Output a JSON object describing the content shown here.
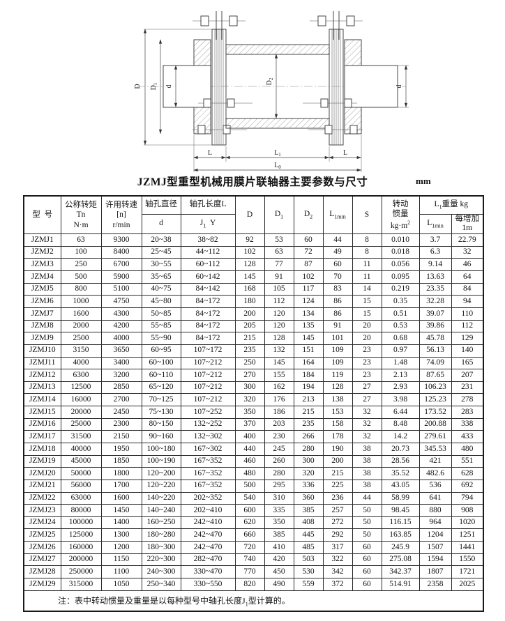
{
  "title": "JZMJ型重型机械用膜片联轴器主要参数与尺寸",
  "unit": "mm",
  "drawing": {
    "labels": {
      "D": "D",
      "D1": [
        "D",
        "1"
      ],
      "d_left": "d",
      "D2": [
        "D",
        "2"
      ],
      "d_right": "d",
      "L_left": "L",
      "L1": [
        "L",
        "1"
      ],
      "L_right": "L",
      "L0": [
        "L",
        "0"
      ]
    }
  },
  "table": {
    "header": {
      "model": "型  号",
      "torque": [
        "公称转矩",
        "Tn",
        "N·m"
      ],
      "speed": [
        "许用转速",
        "[n]",
        "r/min"
      ],
      "bore_dia": "轴孔直径",
      "bore_d": "d",
      "bore_len": "轴孔长度L",
      "j_base": "J",
      "j_sub": "1",
      "y": "Y",
      "D": "D",
      "D1_base": "D",
      "D1_sub": "1",
      "D2_base": "D",
      "D2_sub": "2",
      "L1min_base": "L",
      "L1min_sub": "1min",
      "S": "S",
      "inertia_l1": "转动",
      "inertia_l2": "惯量",
      "inertia_unit_base": "kg·m",
      "inertia_unit_sup": "2",
      "weight_base": "L",
      "weight_sub": "1",
      "weight_rest": "重量 kg",
      "w_l1min_base": "L",
      "w_l1min_sub": "1min",
      "per_m": "每增加1m"
    },
    "col_keys": [
      "model",
      "torque",
      "speed",
      "d",
      "jy",
      "D",
      "D1",
      "D2",
      "L1min",
      "S",
      "inertia",
      "w-l1min",
      "w-per-m"
    ],
    "rows": [
      [
        "JZMJ1",
        "63",
        "9300",
        "20~38",
        "38~82",
        "92",
        "53",
        "60",
        "44",
        "8",
        "0.010",
        "3.7",
        "22.79"
      ],
      [
        "JZMJ2",
        "100",
        "8400",
        "25~45",
        "44~112",
        "102",
        "63",
        "72",
        "49",
        "8",
        "0.018",
        "6.3",
        "32"
      ],
      [
        "JZMJ3",
        "250",
        "6700",
        "30~55",
        "60~112",
        "128",
        "77",
        "87",
        "60",
        "11",
        "0.056",
        "9.14",
        "46"
      ],
      [
        "JZMJ4",
        "500",
        "5900",
        "35~65",
        "60~142",
        "145",
        "91",
        "102",
        "70",
        "11",
        "0.095",
        "13.63",
        "64"
      ],
      [
        "JZMJ5",
        "800",
        "5100",
        "40~75",
        "84~142",
        "168",
        "105",
        "117",
        "83",
        "14",
        "0.219",
        "23.35",
        "84"
      ],
      [
        "JZMJ6",
        "1000",
        "4750",
        "45~80",
        "84~172",
        "180",
        "112",
        "124",
        "86",
        "15",
        "0.35",
        "32.28",
        "94"
      ],
      [
        "JZMJ7",
        "1600",
        "4300",
        "50~85",
        "84~172",
        "200",
        "120",
        "134",
        "86",
        "15",
        "0.51",
        "39.07",
        "110"
      ],
      [
        "JZMJ8",
        "2000",
        "4200",
        "55~85",
        "84~172",
        "205",
        "120",
        "135",
        "91",
        "20",
        "0.53",
        "39.86",
        "112"
      ],
      [
        "JZMJ9",
        "2500",
        "4000",
        "55~90",
        "84~172",
        "215",
        "128",
        "145",
        "101",
        "20",
        "0.68",
        "45.78",
        "129"
      ],
      [
        "JZMJ10",
        "3150",
        "3650",
        "60~95",
        "107~172",
        "235",
        "132",
        "151",
        "109",
        "23",
        "0.97",
        "56.13",
        "140"
      ],
      [
        "JZMJ11",
        "4000",
        "3400",
        "60~100",
        "107~212",
        "250",
        "145",
        "164",
        "109",
        "23",
        "1.48",
        "74.09",
        "165"
      ],
      [
        "JZMJ12",
        "6300",
        "3200",
        "60~110",
        "107~212",
        "270",
        "155",
        "184",
        "119",
        "23",
        "2.13",
        "87.65",
        "207"
      ],
      [
        "JZMJ13",
        "12500",
        "2850",
        "65~120",
        "107~212",
        "300",
        "162",
        "194",
        "128",
        "27",
        "2.93",
        "106.23",
        "231"
      ],
      [
        "JZMJ14",
        "16000",
        "2700",
        "70~125",
        "107~212",
        "320",
        "176",
        "213",
        "138",
        "27",
        "3.98",
        "125.23",
        "278"
      ],
      [
        "JZMJ15",
        "20000",
        "2450",
        "75~130",
        "107~252",
        "350",
        "186",
        "215",
        "153",
        "32",
        "6.44",
        "173.52",
        "283"
      ],
      [
        "JZMJ16",
        "25000",
        "2300",
        "80~150",
        "132~252",
        "370",
        "203",
        "235",
        "158",
        "32",
        "8.48",
        "200.88",
        "338"
      ],
      [
        "JZMJ17",
        "31500",
        "2150",
        "90~160",
        "132~302",
        "400",
        "230",
        "266",
        "178",
        "32",
        "14.2",
        "279.61",
        "433"
      ],
      [
        "JZMJ18",
        "40000",
        "1950",
        "100~180",
        "167~302",
        "440",
        "245",
        "280",
        "190",
        "38",
        "20.73",
        "345.53",
        "480"
      ],
      [
        "JZMJ19",
        "45000",
        "1850",
        "100~190",
        "167~352",
        "460",
        "260",
        "300",
        "200",
        "38",
        "28.56",
        "421",
        "551"
      ],
      [
        "JZMJ20",
        "50000",
        "1800",
        "120~200",
        "167~352",
        "480",
        "280",
        "320",
        "215",
        "38",
        "35.52",
        "482.6",
        "628"
      ],
      [
        "JZMJ21",
        "56000",
        "1700",
        "120~220",
        "167~352",
        "500",
        "295",
        "336",
        "225",
        "38",
        "43.05",
        "536",
        "692"
      ],
      [
        "JZMJ22",
        "63000",
        "1600",
        "140~220",
        "202~352",
        "540",
        "310",
        "360",
        "236",
        "44",
        "58.99",
        "641",
        "794"
      ],
      [
        "JZMJ23",
        "80000",
        "1450",
        "140~240",
        "202~410",
        "600",
        "335",
        "385",
        "257",
        "50",
        "98.45",
        "880",
        "908"
      ],
      [
        "JZMJ24",
        "100000",
        "1400",
        "160~250",
        "242~410",
        "620",
        "350",
        "408",
        "272",
        "50",
        "116.15",
        "964",
        "1020"
      ],
      [
        "JZMJ25",
        "125000",
        "1300",
        "180~280",
        "242~470",
        "660",
        "385",
        "445",
        "292",
        "50",
        "163.85",
        "1204",
        "1251"
      ],
      [
        "JZMJ26",
        "160000",
        "1200",
        "180~300",
        "242~470",
        "720",
        "410",
        "485",
        "317",
        "60",
        "245.9",
        "1507",
        "1441"
      ],
      [
        "JZMJ27",
        "200000",
        "1150",
        "220~300",
        "282~470",
        "740",
        "420",
        "503",
        "322",
        "60",
        "275.08",
        "1594",
        "1550"
      ],
      [
        "JZMJ28",
        "250000",
        "1100",
        "240~300",
        "330~470",
        "770",
        "450",
        "530",
        "342",
        "60",
        "342.37",
        "1807",
        "1721"
      ],
      [
        "JZMJ29",
        "315000",
        "1050",
        "250~340",
        "330~550",
        "820",
        "490",
        "559",
        "372",
        "60",
        "514.91",
        "2358",
        "2025"
      ]
    ]
  },
  "note": {
    "prefix": "注：表中转动惯量及重量是以每种型号中轴孔长度J",
    "sub": "1",
    "suffix": "型计算的。"
  }
}
